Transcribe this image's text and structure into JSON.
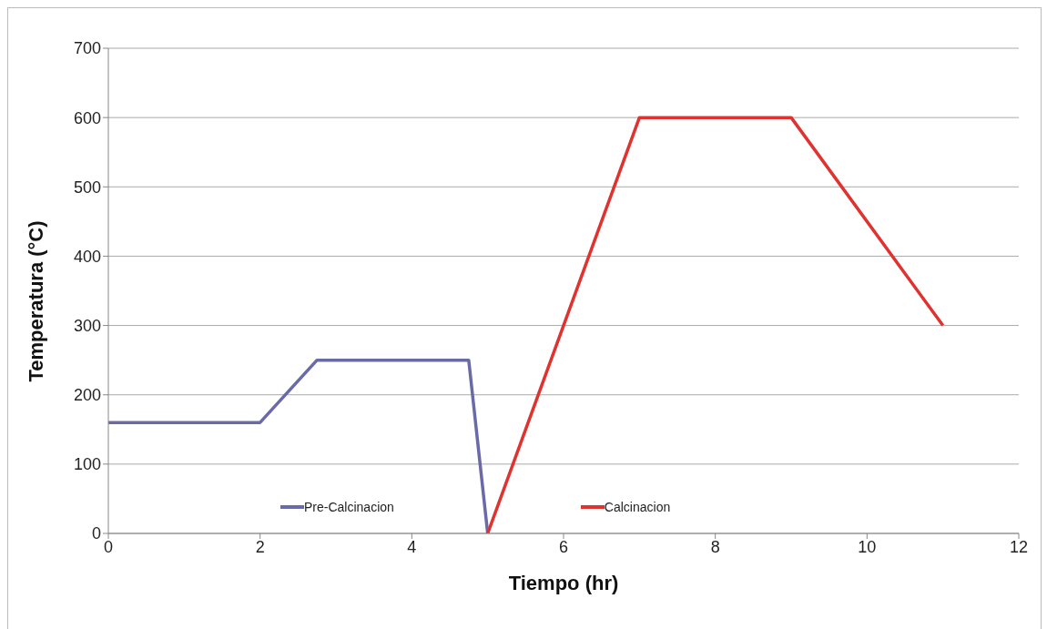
{
  "chart_data": {
    "type": "line",
    "xlabel": "Tiempo (hr)",
    "ylabel": "Temperatura (°C)",
    "xlim": [
      0,
      12
    ],
    "xticks": [
      0,
      2,
      4,
      6,
      8,
      10,
      12
    ],
    "ylim": [
      0,
      700
    ],
    "yticks": [
      0,
      100,
      200,
      300,
      400,
      500,
      600,
      700
    ],
    "grid": "y",
    "legend": "bottom",
    "marker": "none",
    "line_style": "solid",
    "series": [
      {
        "name": "Pre-Calcinacion",
        "color": "#6b6aa8",
        "x": [
          0,
          2,
          2.75,
          4.75,
          5
        ],
        "values": [
          160,
          160,
          250,
          250,
          0
        ]
      },
      {
        "name": "Calcinacion",
        "color": "#e0322f",
        "x": [
          5,
          7,
          9,
          11
        ],
        "values": [
          0,
          600,
          600,
          300
        ]
      }
    ]
  }
}
